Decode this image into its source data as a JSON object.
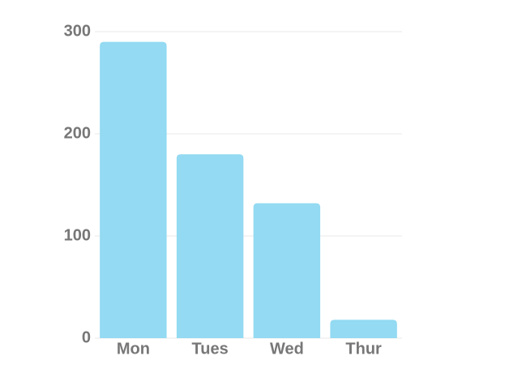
{
  "chart_data": {
    "type": "bar",
    "categories": [
      "Mon",
      "Tues",
      "Wed",
      "Thur"
    ],
    "values": [
      290,
      180,
      132,
      18
    ],
    "color": "#93daf2",
    "ylim": [
      0,
      300
    ],
    "yticks": [
      0,
      100,
      200,
      300
    ],
    "grid": true
  }
}
